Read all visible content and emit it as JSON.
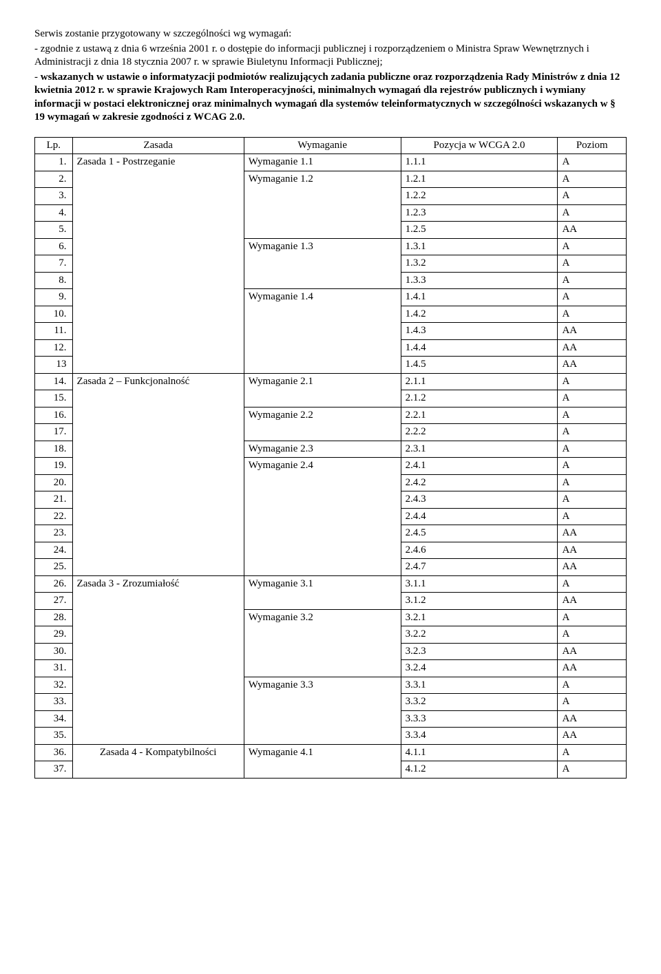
{
  "intro": {
    "line1": "Serwis zostanie przygotowany w szczególności wg wymagań:",
    "bullet1": "zgodnie z ustawą z dnia 6 września 2001 r. o dostępie do informacji publicznej i rozporządzeniem o Ministra Spraw Wewnętrznych i Administracji z dnia 18 stycznia 2007 r. w sprawie Biuletynu Informacji Publicznej;",
    "bullet2_bold": "wskazanych w ustawie o informatyzacji podmiotów realizujących zadania publiczne oraz rozporządzenia Rady Ministrów z dnia 12 kwietnia 2012 r. w sprawie Krajowych Ram Interoperacyjności, minimalnych wymagań dla rejestrów publicznych i wymiany informacji w postaci elektronicznej oraz minimalnych wymagań dla systemów teleinformatycznych w szczególności wskazanych w § 19 wymagań w zakresie zgodności z WCAG 2.0."
  },
  "table": {
    "headers": {
      "lp": "Lp.",
      "zasada": "Zasada",
      "wymaganie": "Wymaganie",
      "pozycja": "Pozycja w WCGA 2.0",
      "poziom": "Poziom"
    },
    "rows": [
      {
        "lp": "1.",
        "zasada": "Zasada 1 - Postrzeganie",
        "wym": "Wymaganie 1.1",
        "poz": "1.1.1",
        "poziom": "A",
        "z_span": 13,
        "w_span": 1
      },
      {
        "lp": "2.",
        "wym": "Wymaganie 1.2",
        "poz": "1.2.1",
        "poziom": "A",
        "w_span": 4
      },
      {
        "lp": "3.",
        "poz": "1.2.2",
        "poziom": "A"
      },
      {
        "lp": "4.",
        "poz": "1.2.3",
        "poziom": "A"
      },
      {
        "lp": "5.",
        "poz": "1.2.5",
        "poziom": "AA"
      },
      {
        "lp": "6.",
        "wym": "Wymaganie 1.3",
        "poz": "1.3.1",
        "poziom": "A",
        "w_span": 3
      },
      {
        "lp": "7.",
        "poz": "1.3.2",
        "poziom": "A"
      },
      {
        "lp": "8.",
        "poz": "1.3.3",
        "poziom": "A"
      },
      {
        "lp": "9.",
        "wym": "Wymaganie 1.4",
        "poz": "1.4.1",
        "poziom": "A",
        "w_span": 5
      },
      {
        "lp": "10.",
        "poz": "1.4.2",
        "poziom": "A"
      },
      {
        "lp": "11.",
        "poz": "1.4.3",
        "poziom": "AA"
      },
      {
        "lp": "12.",
        "poz": "1.4.4",
        "poziom": "AA"
      },
      {
        "lp": "13",
        "poz": "1.4.5",
        "poziom": "AA"
      },
      {
        "lp": "14.",
        "zasada": "Zasada 2 – Funkcjonalność",
        "wym": "Wymaganie 2.1",
        "poz": "2.1.1",
        "poziom": "A",
        "z_span": 12,
        "w_span": 2
      },
      {
        "lp": "15.",
        "poz": "2.1.2",
        "poziom": "A"
      },
      {
        "lp": "16.",
        "wym": "Wymaganie 2.2",
        "poz": "2.2.1",
        "poziom": "A",
        "w_span": 2
      },
      {
        "lp": "17.",
        "poz": "2.2.2",
        "poziom": "A"
      },
      {
        "lp": "18.",
        "wym": "Wymaganie 2.3",
        "poz": "2.3.1",
        "poziom": "A",
        "w_span": 1
      },
      {
        "lp": "19.",
        "wym": "Wymaganie 2.4",
        "poz": "2.4.1",
        "poziom": "A",
        "w_span": 7
      },
      {
        "lp": "20.",
        "poz": "2.4.2",
        "poziom": "A"
      },
      {
        "lp": "21.",
        "poz": "2.4.3",
        "poziom": "A"
      },
      {
        "lp": "22.",
        "poz": "2.4.4",
        "poziom": "A"
      },
      {
        "lp": "23.",
        "poz": "2.4.5",
        "poziom": "AA"
      },
      {
        "lp": "24.",
        "poz": "2.4.6",
        "poziom": "AA"
      },
      {
        "lp": "25.",
        "poz": "2.4.7",
        "poziom": "AA"
      },
      {
        "lp": "26.",
        "zasada": "Zasada 3 - Zrozumiałość",
        "wym": "Wymaganie 3.1",
        "poz": "3.1.1",
        "poziom": "A",
        "z_span": 10,
        "w_span": 2
      },
      {
        "lp": "27.",
        "poz": "3.1.2",
        "poziom": "AA"
      },
      {
        "lp": "28.",
        "wym": "Wymaganie 3.2",
        "poz": "3.2.1",
        "poziom": "A",
        "w_span": 4
      },
      {
        "lp": "29.",
        "poz": "3.2.2",
        "poziom": "A"
      },
      {
        "lp": "30.",
        "poz": "3.2.3",
        "poziom": "AA"
      },
      {
        "lp": "31.",
        "poz": "3.2.4",
        "poziom": "AA"
      },
      {
        "lp": "32.",
        "wym": "Wymaganie 3.3",
        "poz": "3.3.1",
        "poziom": "A",
        "w_span": 4
      },
      {
        "lp": "33.",
        "poz": "3.3.2",
        "poziom": "A"
      },
      {
        "lp": "34.",
        "poz": "3.3.3",
        "poziom": "AA"
      },
      {
        "lp": "35.",
        "poz": "3.3.4",
        "poziom": "AA"
      },
      {
        "lp": "36.",
        "zasada": "Zasada 4 - Kompatybilności",
        "wym": "Wymaganie 4.1",
        "poz": "4.1.1",
        "poziom": "A",
        "z_span": 2,
        "w_span": 2,
        "z_center": true
      },
      {
        "lp": "37.",
        "poz": "4.1.2",
        "poziom": "A"
      }
    ]
  }
}
